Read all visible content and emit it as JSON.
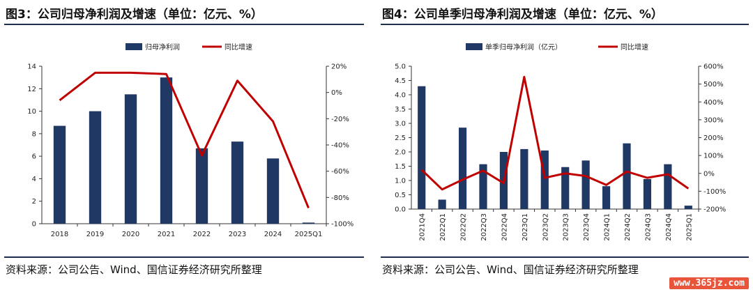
{
  "colors": {
    "bar": "#1f3864",
    "line": "#c00000",
    "rule": "#1f2d4e"
  },
  "charts": [
    {
      "title": "图3：公司归母净利润及增速（单位：亿元、%）",
      "source": "资料来源：公司公告、Wind、国信证券经济研究所整理"
    },
    {
      "title": "图4：公司单季归母净利润及增速（单位：亿元、%）",
      "source": "资料来源：公司公告、Wind、国信证券经济研究所整理"
    }
  ],
  "watermark": "www.365jz.com",
  "chart_data": [
    {
      "type": "bar",
      "categories": [
        "2018",
        "2019",
        "2020",
        "2021",
        "2022",
        "2023",
        "2024",
        "2025Q1"
      ],
      "series": [
        {
          "name": "归母净利润",
          "type": "bar",
          "axis": "left",
          "values": [
            8.7,
            10.0,
            11.5,
            13.0,
            6.7,
            7.3,
            5.8,
            0.1
          ]
        },
        {
          "name": "同比增速",
          "type": "line",
          "axis": "right",
          "values": [
            -6,
            15,
            15,
            14,
            -48,
            9,
            -22,
            -88
          ]
        }
      ],
      "ylim_left": [
        0,
        14
      ],
      "yticks_left": [
        "0",
        "2",
        "4",
        "6",
        "8",
        "10",
        "12",
        "14"
      ],
      "ylim_right": [
        -100,
        20
      ],
      "yticks_right": [
        "20%",
        "0%",
        "-20%",
        "-40%",
        "-60%",
        "-80%",
        "-100%"
      ],
      "legend": "top-center",
      "grid": false
    },
    {
      "type": "bar",
      "categories": [
        "2021Q4",
        "2022Q1",
        "2022Q2",
        "2022Q3",
        "2022Q4",
        "2023Q1",
        "2023Q2",
        "2023Q3",
        "2023Q4",
        "2024Q1",
        "2024Q2",
        "2024Q3",
        "2024Q4",
        "2025Q1"
      ],
      "series": [
        {
          "name": "单季归母净利润（亿元）",
          "type": "bar",
          "axis": "left",
          "values": [
            4.3,
            0.33,
            2.85,
            1.57,
            2.0,
            2.1,
            2.05,
            1.47,
            1.7,
            0.8,
            2.3,
            1.05,
            1.57,
            0.12
          ]
        },
        {
          "name": "同比增速",
          "type": "line",
          "axis": "right",
          "values": [
            20,
            -90,
            -35,
            15,
            -55,
            540,
            -25,
            0,
            -15,
            -65,
            10,
            -25,
            -5,
            -85
          ]
        }
      ],
      "ylim_left": [
        0,
        5
      ],
      "yticks_left": [
        "0.0",
        "0.5",
        "1.0",
        "1.5",
        "2.0",
        "2.5",
        "3.0",
        "3.5",
        "4.0",
        "4.5",
        "5.0"
      ],
      "ylim_right": [
        -200,
        600
      ],
      "yticks_right": [
        "600%",
        "500%",
        "400%",
        "300%",
        "200%",
        "100%",
        "0%",
        "-100%",
        "-200%"
      ],
      "legend": "top-center",
      "grid": false
    }
  ]
}
